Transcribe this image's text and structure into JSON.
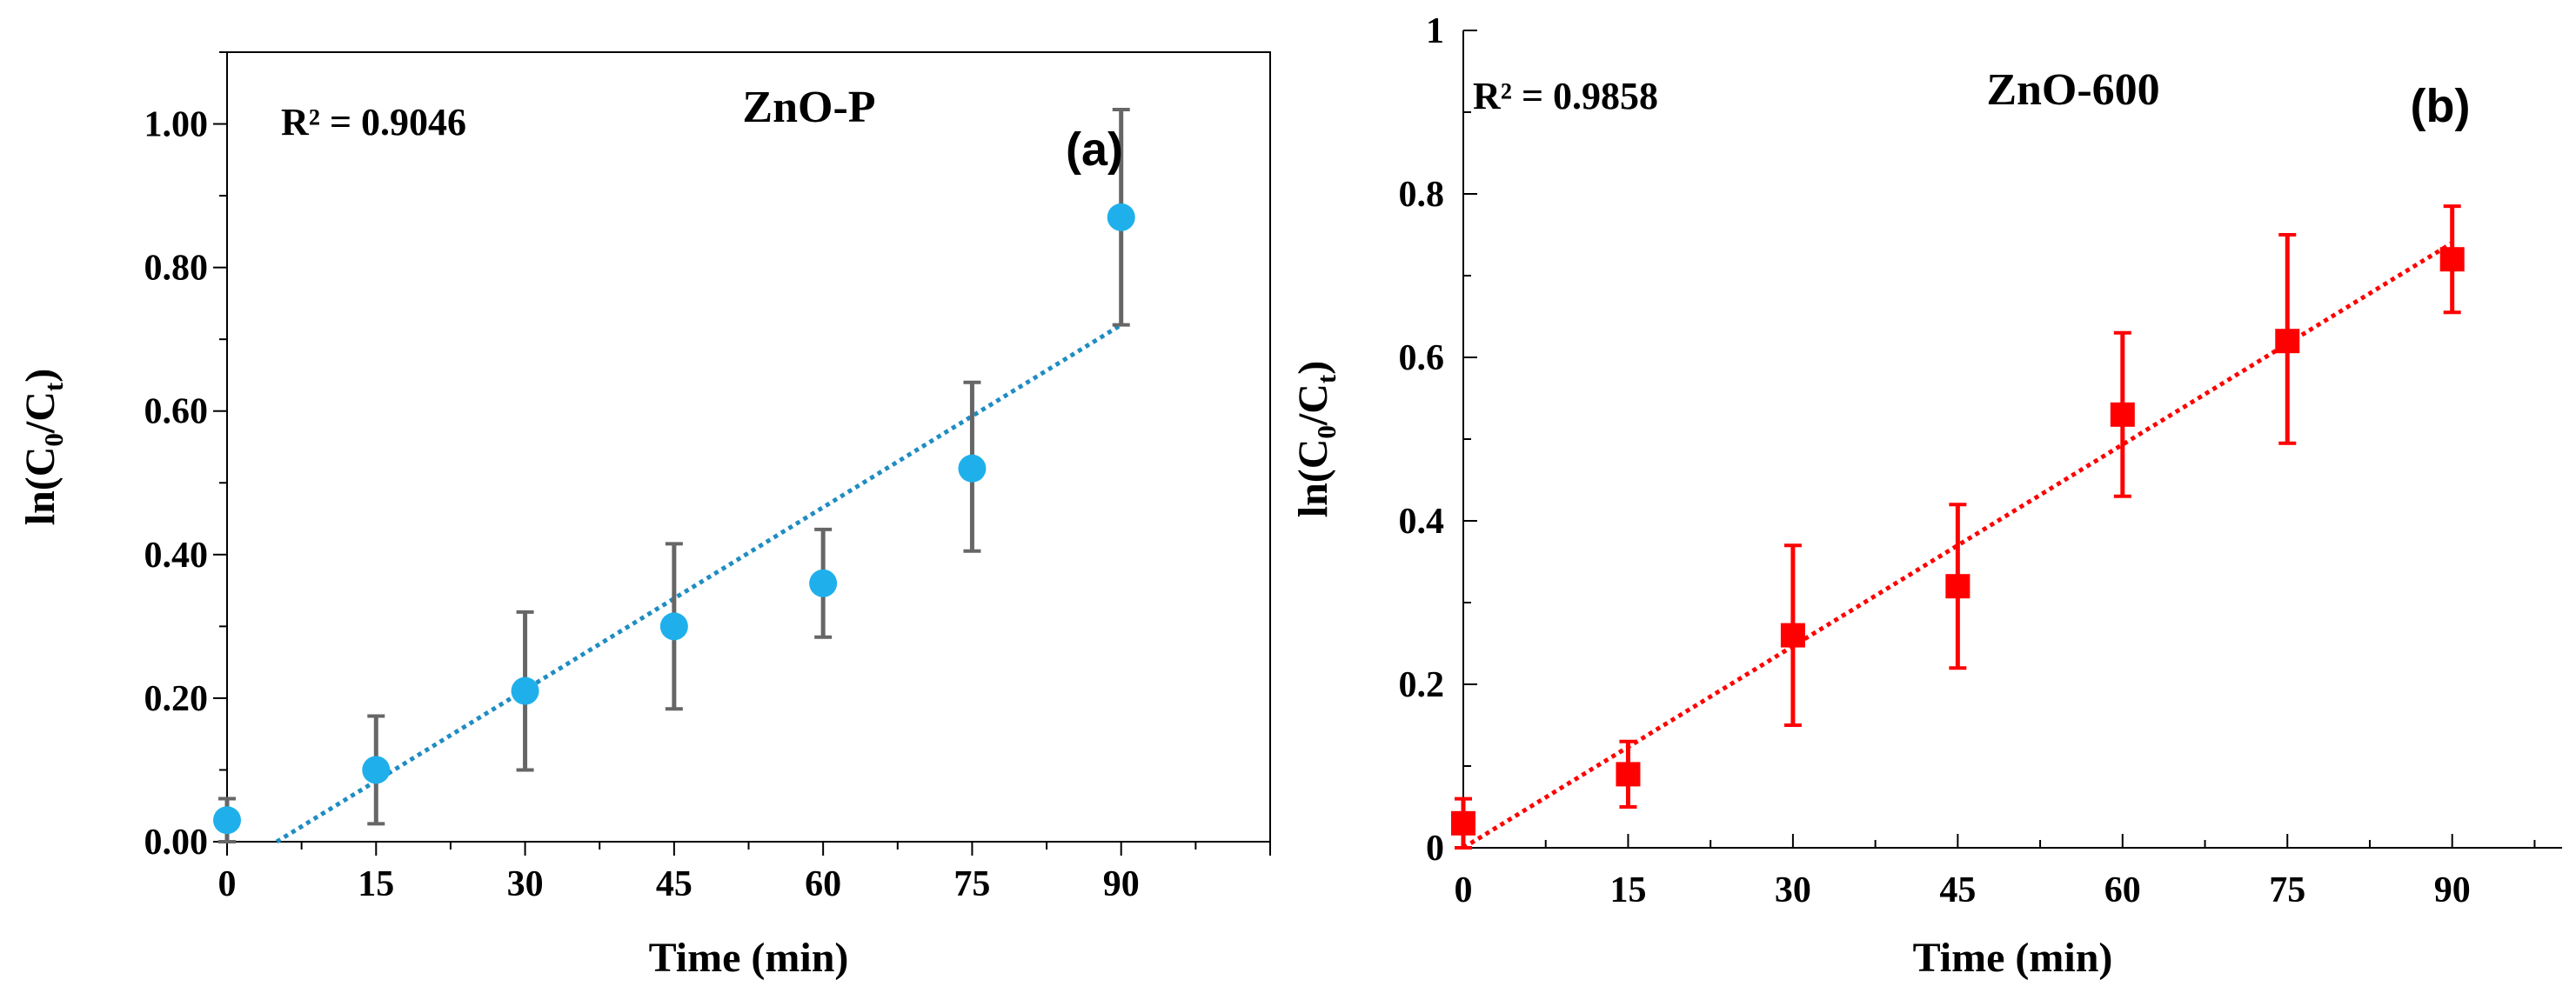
{
  "chart_data": [
    {
      "type": "scatter",
      "panel_label": "(a)",
      "title": "ZnO-P",
      "annotation": "R² = 0.9046",
      "xlabel": "Time (min)",
      "ylabel_base": "ln(C",
      "ylabel_sub0": "0",
      "ylabel_mid": "/C",
      "ylabel_subt": "t",
      "ylabel_end": ")",
      "xlim": [
        0,
        105
      ],
      "ylim": [
        0,
        1.1
      ],
      "xticks": [
        0,
        15,
        30,
        45,
        60,
        75,
        90
      ],
      "yticks": [
        "0.00",
        "0.20",
        "0.40",
        "0.60",
        "0.80",
        "1.00"
      ],
      "ytick_values": [
        0,
        0.2,
        0.4,
        0.6,
        0.8,
        1.0
      ],
      "marker": "circle",
      "marker_color": "#1fb0ec",
      "error_color": "#666666",
      "trend_color": "#1f8dc2",
      "x": [
        0,
        15,
        30,
        45,
        60,
        75,
        90
      ],
      "y": [
        0.03,
        0.1,
        0.21,
        0.3,
        0.36,
        0.52,
        0.87
      ],
      "err_low": [
        0.03,
        0.075,
        0.11,
        0.115,
        0.075,
        0.115,
        0.15
      ],
      "err_high": [
        0.03,
        0.075,
        0.11,
        0.115,
        0.075,
        0.12,
        0.15
      ],
      "trendline": {
        "x": [
          5,
          90
        ],
        "y": [
          0.0,
          0.72
        ]
      }
    },
    {
      "type": "scatter",
      "panel_label": "(b)",
      "title": "ZnO-600",
      "annotation": "R² = 0.9858",
      "xlabel": "Time (min)",
      "ylabel_base": "ln(C",
      "ylabel_sub0": "0",
      "ylabel_mid": "/C",
      "ylabel_subt": "t",
      "ylabel_end": ")",
      "xlim": [
        0,
        100
      ],
      "ylim": [
        0,
        1.0
      ],
      "xticks": [
        0,
        15,
        30,
        45,
        60,
        75,
        90
      ],
      "yticks": [
        "0",
        "0.2",
        "0.4",
        "0.6",
        "0.8",
        "1"
      ],
      "ytick_values": [
        0,
        0.2,
        0.4,
        0.6,
        0.8,
        1.0
      ],
      "marker": "square",
      "marker_color": "#ff0000",
      "error_color": "#ff0000",
      "trend_color": "#ff0000",
      "x": [
        0,
        15,
        30,
        45,
        60,
        75,
        90
      ],
      "y": [
        0.03,
        0.09,
        0.26,
        0.32,
        0.53,
        0.62,
        0.72
      ],
      "err_low": [
        0.03,
        0.04,
        0.11,
        0.1,
        0.1,
        0.125,
        0.065
      ],
      "err_high": [
        0.03,
        0.04,
        0.11,
        0.1,
        0.1,
        0.13,
        0.065
      ],
      "trendline": {
        "x": [
          0,
          90
        ],
        "y": [
          0.0,
          0.74
        ]
      }
    }
  ]
}
